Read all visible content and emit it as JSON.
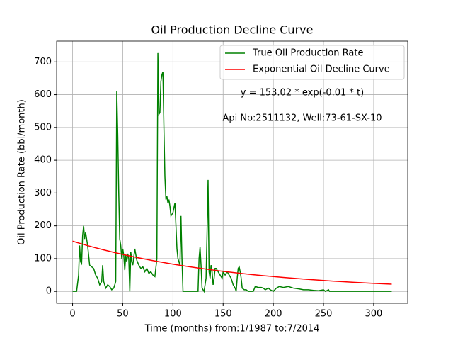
{
  "chart_data": {
    "type": "line",
    "title": "Oil Production Decline Curve",
    "xlabel": "Time (months) from:1/1987 to:7/2014",
    "ylabel": "Oil Production Rate (bbl/month)",
    "annotations": [
      "y = 153.02 * exp(-0.01 * t)",
      "Api No:2511132, Well:73-61-SX-10"
    ],
    "xlim": [
      -15.9,
      333.9
    ],
    "ylim": [
      -36.35,
      763.35
    ],
    "xticks": [
      0,
      50,
      100,
      150,
      200,
      250,
      300
    ],
    "yticks": [
      0,
      100,
      200,
      300,
      400,
      500,
      600,
      700
    ],
    "grid": true,
    "legend": "upper right",
    "series": [
      {
        "name": "True Oil Production Rate",
        "color": "#008000",
        "x": [
          0,
          4,
          6,
          7,
          8,
          9,
          10,
          11,
          12,
          13,
          15,
          17,
          19,
          21,
          23,
          25,
          27,
          29,
          30,
          31,
          33,
          35,
          37,
          39,
          41,
          43,
          44,
          45,
          46,
          47,
          48,
          49,
          50,
          51,
          52,
          53,
          54,
          55,
          56,
          57,
          58,
          59,
          60,
          62,
          64,
          66,
          68,
          70,
          72,
          74,
          76,
          78,
          80,
          82,
          84,
          85,
          86,
          87,
          88,
          89,
          90,
          91,
          92,
          93,
          94,
          95,
          96,
          97,
          98,
          100,
          102,
          103,
          104,
          105,
          106,
          107,
          108,
          109,
          110,
          115,
          120,
          125,
          126,
          127,
          128,
          129,
          131,
          133,
          134,
          135,
          136,
          137,
          138,
          139,
          140,
          141,
          142,
          143,
          145,
          147,
          149,
          150,
          152,
          154,
          156,
          158,
          160,
          162,
          163,
          164,
          165,
          166,
          167,
          168,
          169,
          171,
          173,
          175,
          180,
          182,
          185,
          188,
          190,
          192,
          195,
          197,
          200,
          203,
          206,
          210,
          215,
          220,
          225,
          230,
          235,
          240,
          245,
          250,
          252,
          255,
          256,
          318
        ],
        "values": [
          0,
          0,
          50,
          140,
          90,
          85,
          170,
          200,
          160,
          180,
          140,
          80,
          75,
          70,
          50,
          40,
          20,
          30,
          80,
          30,
          10,
          20,
          15,
          5,
          10,
          30,
          612,
          480,
          300,
          160,
          140,
          100,
          130,
          110,
          65,
          110,
          90,
          115,
          100,
          0,
          120,
          90,
          80,
          130,
          95,
          80,
          70,
          75,
          60,
          70,
          55,
          60,
          50,
          45,
          100,
          727,
          540,
          545,
          640,
          660,
          670,
          500,
          350,
          280,
          290,
          270,
          280,
          260,
          230,
          240,
          270,
          200,
          130,
          100,
          90,
          80,
          230,
          100,
          0,
          0,
          0,
          0,
          100,
          135,
          80,
          10,
          0,
          40,
          180,
          340,
          60,
          40,
          80,
          60,
          20,
          40,
          70,
          70,
          60,
          50,
          40,
          60,
          50,
          60,
          50,
          40,
          20,
          10,
          0,
          40,
          70,
          75,
          60,
          40,
          10,
          5,
          5,
          0,
          0,
          15,
          12,
          12,
          10,
          5,
          10,
          5,
          0,
          10,
          15,
          12,
          15,
          10,
          8,
          5,
          5,
          3,
          2,
          5,
          0,
          5,
          0,
          0
        ]
      },
      {
        "name": "Exponential Oil Decline Curve",
        "color": "#ff0000",
        "x": [
          0,
          10,
          20,
          30,
          40,
          50,
          60,
          70,
          80,
          90,
          100,
          110,
          120,
          130,
          140,
          150,
          160,
          170,
          180,
          190,
          200,
          210,
          220,
          230,
          240,
          250,
          260,
          270,
          280,
          290,
          300,
          310,
          318
        ],
        "values": [
          153.0,
          144.0,
          135.4,
          127.4,
          119.9,
          112.8,
          106.1,
          99.8,
          93.9,
          88.4,
          83.1,
          78.2,
          73.6,
          69.2,
          65.1,
          61.3,
          57.6,
          54.2,
          51.0,
          48.0,
          45.2,
          42.5,
          40.0,
          37.6,
          35.4,
          33.3,
          31.3,
          29.5,
          27.7,
          26.1,
          24.5,
          23.1,
          22.0
        ]
      }
    ]
  }
}
